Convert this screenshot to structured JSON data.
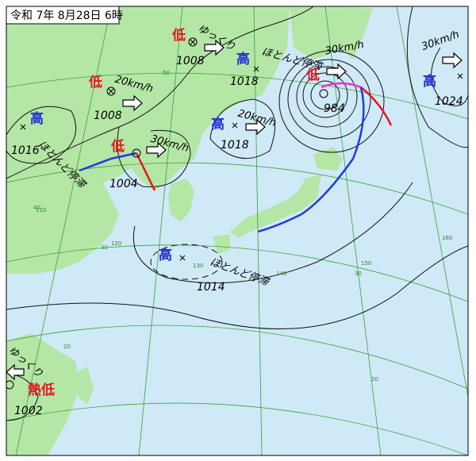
{
  "header": {
    "title": "令和 7年 8月28日 6時"
  },
  "systems": [
    {
      "kind": "低",
      "pressure": "1008",
      "motion": "ゆっくり"
    },
    {
      "kind": "低",
      "pressure": "1008",
      "motion": "20km/h"
    },
    {
      "kind": "高",
      "pressure": "1016",
      "motion": "ほとんど停滞"
    },
    {
      "kind": "低",
      "pressure": "1004",
      "motion": "30km/h"
    },
    {
      "kind": "高",
      "pressure": "1018",
      "motion": "ほとんど停滞"
    },
    {
      "kind": "高",
      "pressure": "1018",
      "motion": "20km/h"
    },
    {
      "kind": "低",
      "pressure": "984",
      "motion": "30km/h"
    },
    {
      "kind": "高",
      "pressure": "1024",
      "motion": "30km/h"
    },
    {
      "kind": "高",
      "pressure": "1014",
      "motion": "ほとんど停滞"
    },
    {
      "kind": "熱低",
      "pressure": "1002",
      "motion": "ゆっくり"
    }
  ],
  "grid_labels": [
    "50",
    "40",
    "110",
    "120",
    "30",
    "130",
    "140",
    "150",
    "30",
    "160",
    "20",
    "20"
  ]
}
